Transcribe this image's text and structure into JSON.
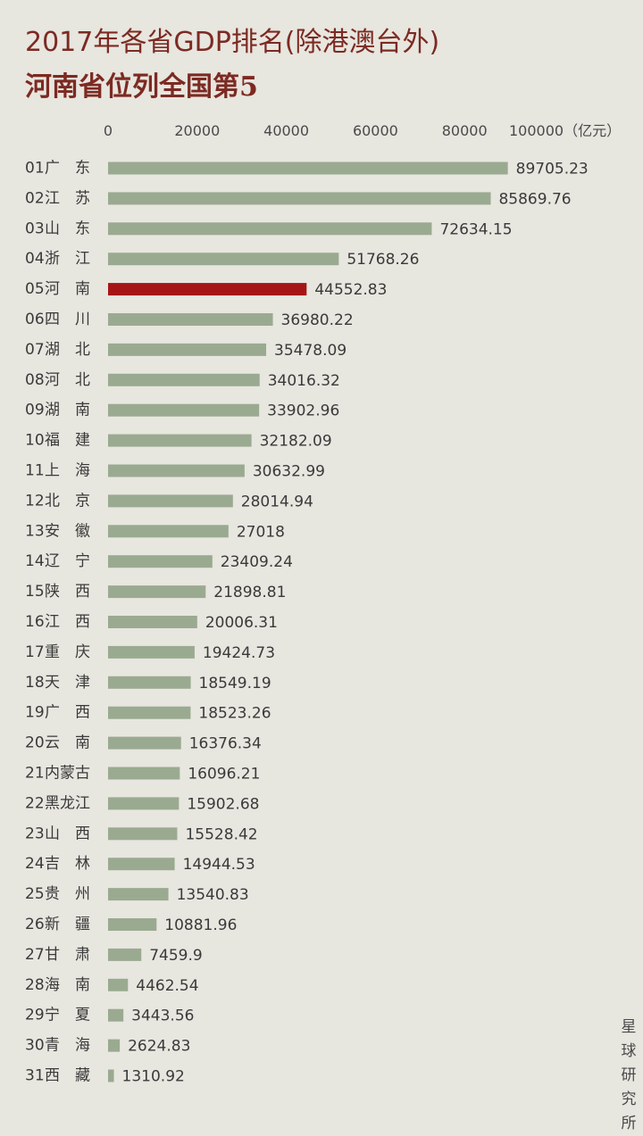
{
  "title": "2017年各省GDP排名(除港澳台外)",
  "subtitle": "河南省位列全国第5",
  "watermark": "星球研究所",
  "colors": {
    "bar": "#9aaa90",
    "highlight": "#a51515",
    "title": "#7c2a22"
  },
  "chart_data": {
    "type": "bar",
    "orientation": "horizontal",
    "xlim": [
      0,
      100000
    ],
    "x_ticks": [
      "0",
      "20000",
      "40000",
      "60000",
      "80000",
      "100000（亿元）"
    ],
    "highlight_index": 4,
    "categories": [
      {
        "rank": "01",
        "name": "广　东",
        "value": 89705.23,
        "label": "89705.23"
      },
      {
        "rank": "02",
        "name": "江　苏",
        "value": 85869.76,
        "label": "85869.76"
      },
      {
        "rank": "03",
        "name": "山　东",
        "value": 72634.15,
        "label": "72634.15"
      },
      {
        "rank": "04",
        "name": "浙　江",
        "value": 51768.26,
        "label": "51768.26"
      },
      {
        "rank": "05",
        "name": "河　南",
        "value": 44552.83,
        "label": "44552.83"
      },
      {
        "rank": "06",
        "name": "四　川",
        "value": 36980.22,
        "label": "36980.22"
      },
      {
        "rank": "07",
        "name": "湖　北",
        "value": 35478.09,
        "label": "35478.09"
      },
      {
        "rank": "08",
        "name": "河　北",
        "value": 34016.32,
        "label": "34016.32"
      },
      {
        "rank": "09",
        "name": "湖　南",
        "value": 33902.96,
        "label": "33902.96"
      },
      {
        "rank": "10",
        "name": "福　建",
        "value": 32182.09,
        "label": "32182.09"
      },
      {
        "rank": "11",
        "name": "上　海",
        "value": 30632.99,
        "label": "30632.99"
      },
      {
        "rank": "12",
        "name": "北　京",
        "value": 28014.94,
        "label": "28014.94"
      },
      {
        "rank": "13",
        "name": "安　徽",
        "value": 27018,
        "label": "27018"
      },
      {
        "rank": "14",
        "name": "辽　宁",
        "value": 23409.24,
        "label": "23409.24"
      },
      {
        "rank": "15",
        "name": "陕　西",
        "value": 21898.81,
        "label": "21898.81"
      },
      {
        "rank": "16",
        "name": "江　西",
        "value": 20006.31,
        "label": "20006.31"
      },
      {
        "rank": "17",
        "name": "重　庆",
        "value": 19424.73,
        "label": "19424.73"
      },
      {
        "rank": "18",
        "name": "天　津",
        "value": 18549.19,
        "label": "18549.19"
      },
      {
        "rank": "19",
        "name": "广　西",
        "value": 18523.26,
        "label": "18523.26"
      },
      {
        "rank": "20",
        "name": "云　南",
        "value": 16376.34,
        "label": "16376.34"
      },
      {
        "rank": "21",
        "name": "内蒙古",
        "value": 16096.21,
        "label": "16096.21"
      },
      {
        "rank": "22",
        "name": "黑龙江",
        "value": 15902.68,
        "label": "15902.68"
      },
      {
        "rank": "23",
        "name": "山　西",
        "value": 15528.42,
        "label": "15528.42"
      },
      {
        "rank": "24",
        "name": "吉　林",
        "value": 14944.53,
        "label": "14944.53"
      },
      {
        "rank": "25",
        "name": "贵　州",
        "value": 13540.83,
        "label": "13540.83"
      },
      {
        "rank": "26",
        "name": "新　疆",
        "value": 10881.96,
        "label": "10881.96"
      },
      {
        "rank": "27",
        "name": "甘　肃",
        "value": 7459.9,
        "label": "7459.9"
      },
      {
        "rank": "28",
        "name": "海　南",
        "value": 4462.54,
        "label": "4462.54"
      },
      {
        "rank": "29",
        "name": "宁　夏",
        "value": 3443.56,
        "label": "3443.56"
      },
      {
        "rank": "30",
        "name": "青　海",
        "value": 2624.83,
        "label": "2624.83"
      },
      {
        "rank": "31",
        "name": "西　藏",
        "value": 1310.92,
        "label": "1310.92"
      }
    ]
  }
}
